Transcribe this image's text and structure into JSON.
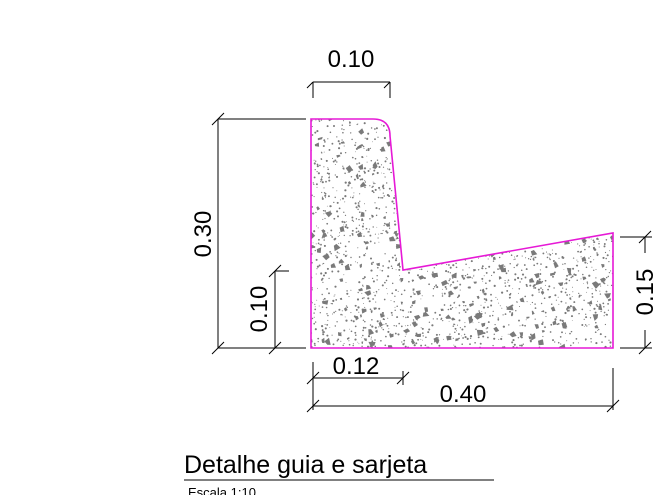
{
  "drawing": {
    "dimensions": {
      "top_width": "0.10",
      "total_height": "0.30",
      "lower_height": "0.10",
      "right_height": "0.15",
      "base_width_small": "0.12",
      "base_width_total": "0.40"
    },
    "title": "Detalhe guia e sarjeta",
    "scale": "Escala 1:10",
    "colors": {
      "outline": "#e619d6",
      "concrete_fill": "#ffffff",
      "aggregate": "#7a7a7a",
      "lines": "#000000"
    }
  }
}
